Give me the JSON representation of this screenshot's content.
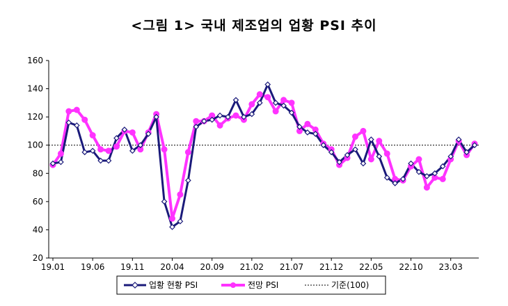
{
  "title": "<그림 1> 국내 제조업의 업황 PSI 추이",
  "chart_data": {
    "type": "line",
    "title": "<그림 1> 국내 제조업의 업황 PSI 추이",
    "ylim": [
      20,
      160
    ],
    "yticks": [
      20,
      40,
      60,
      80,
      100,
      120,
      140,
      160
    ],
    "x_tick_labels": [
      "19.01",
      "19.06",
      "19.11",
      "20.04",
      "20.09",
      "21.02",
      "21.07",
      "21.12",
      "22.05",
      "22.10",
      "23.03"
    ],
    "x_tick_period_index": [
      0,
      5,
      10,
      15,
      20,
      25,
      30,
      35,
      40,
      45,
      50
    ],
    "x_range": [
      0,
      53
    ],
    "grid": false,
    "legend_position": "bottom",
    "reference_line": {
      "value": 100,
      "label": "기준(100)",
      "color": "#000000",
      "style": "dotted"
    },
    "series": [
      {
        "name": "업황 현황 PSI",
        "color": "#1a1a7a",
        "marker": "diamond",
        "values": [
          87,
          88,
          116,
          114,
          95,
          96,
          89,
          89,
          105,
          111,
          96,
          100,
          108,
          120,
          60,
          42,
          46,
          75,
          113,
          117,
          118,
          121,
          120,
          132,
          120,
          122,
          130,
          143,
          130,
          128,
          123,
          113,
          109,
          108,
          100,
          95,
          88,
          93,
          97,
          87,
          104,
          92,
          77,
          73,
          76,
          87,
          81,
          78,
          80,
          85,
          92,
          104,
          95,
          100
        ]
      },
      {
        "name": "전망 PSI",
        "color": "#ff33ff",
        "marker": "circle",
        "values": [
          86,
          94,
          124,
          125,
          118,
          107,
          97,
          96,
          99,
          110,
          109,
          97,
          109,
          122,
          97,
          48,
          65,
          95,
          117,
          117,
          121,
          114,
          119,
          121,
          118,
          129,
          136,
          134,
          124,
          132,
          130,
          110,
          115,
          111,
          101,
          97,
          86,
          91,
          106,
          110,
          90,
          103,
          94,
          76,
          75,
          85,
          90,
          70,
          77,
          76,
          90,
          103,
          93,
          101
        ]
      }
    ]
  }
}
